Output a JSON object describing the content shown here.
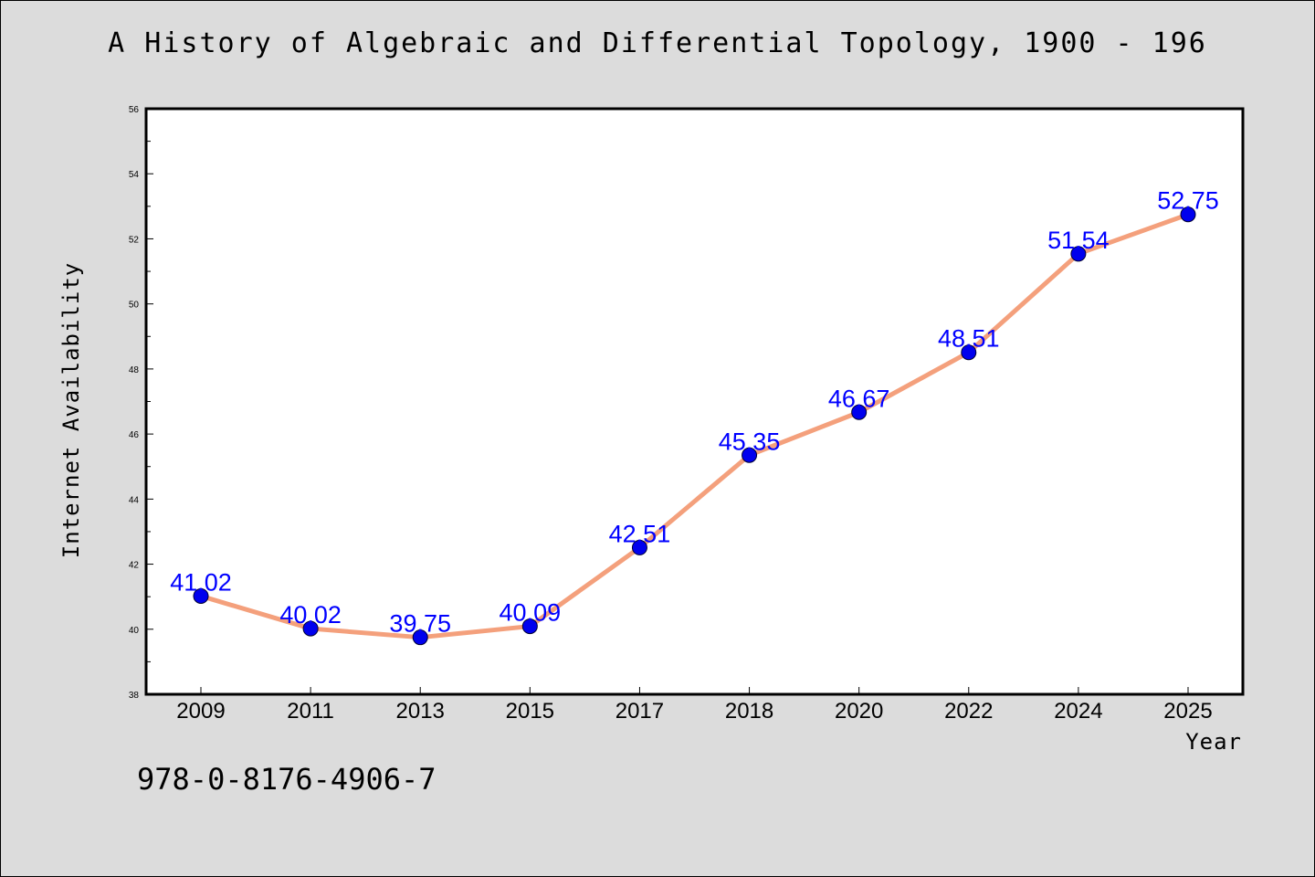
{
  "chart_data": {
    "type": "line",
    "title": "A History of Algebraic and Differential Topology, 1900 - 196",
    "xlabel": "Year",
    "ylabel": "Internet Availability",
    "categories": [
      "2009",
      "2011",
      "2013",
      "2015",
      "2017",
      "2018",
      "2020",
      "2022",
      "2024",
      "2025"
    ],
    "series": [
      {
        "values": [
          41.02,
          40.02,
          39.75,
          40.09,
          42.51,
          45.35,
          46.67,
          48.51,
          51.54,
          52.75
        ],
        "data_labels": [
          "41.02",
          "40.02",
          "39.75",
          "40.09",
          "42.51",
          "45.35",
          "46.67",
          "48.51",
          "51.54",
          "52.75"
        ]
      }
    ],
    "ylim": [
      38,
      56
    ],
    "y_ticks": [
      "38",
      "40",
      "42",
      "44",
      "46",
      "48",
      "50",
      "52",
      "54",
      "56"
    ],
    "grid": false,
    "colors": {
      "line": "#f4a07c",
      "marker": "#0000ee",
      "marker_edge": "#000033",
      "label": "#0000ff"
    }
  },
  "footer": {
    "isbn": "978-0-8176-4906-7"
  }
}
